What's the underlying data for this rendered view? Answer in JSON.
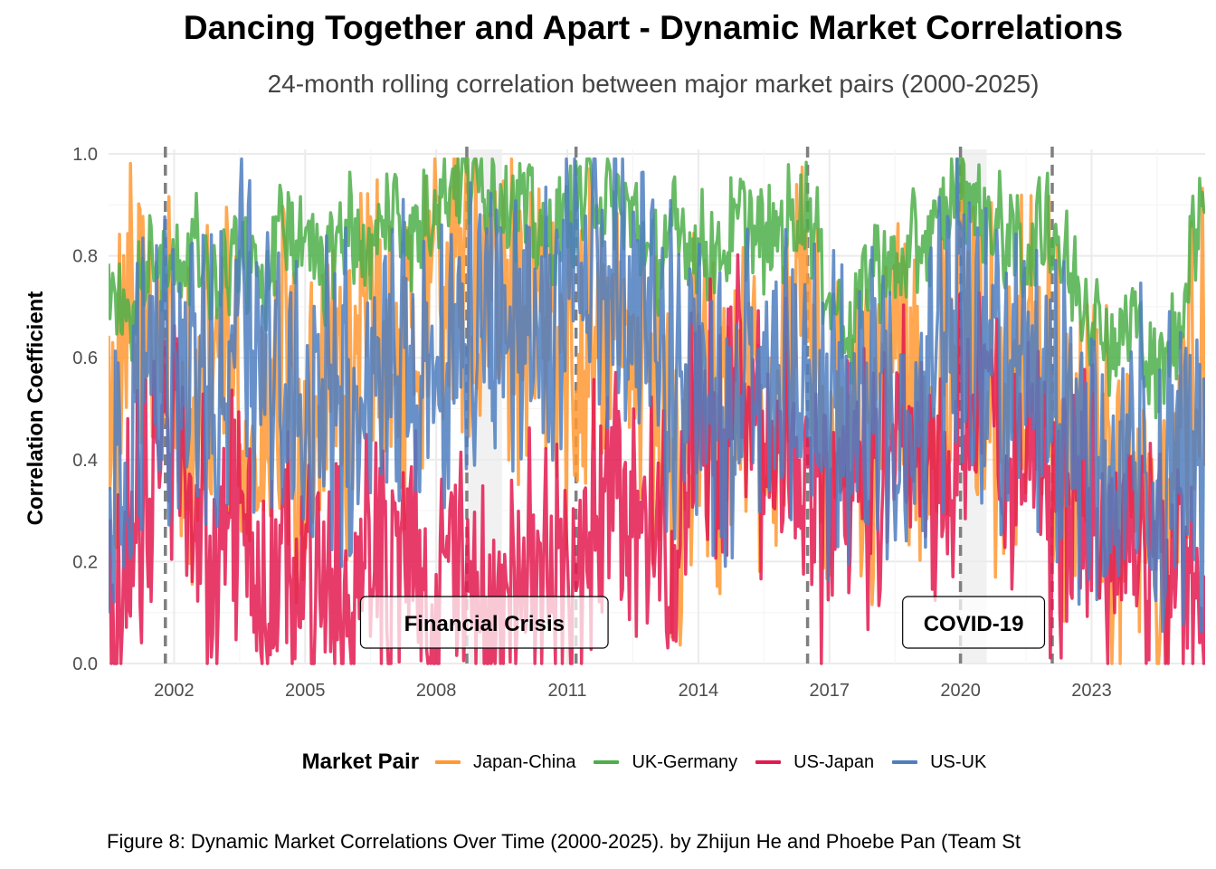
{
  "title": "Dancing Together and Apart - Dynamic Market Correlations",
  "subtitle": "24-month rolling correlation between major market pairs (2000-2025)",
  "caption": "Figure 8: Dynamic Market Correlations Over Time (2000-2025). by Zhijun He and Phoebe Pan (Team St",
  "chart_data": {
    "type": "line",
    "ylabel": "Correlation Coefficient",
    "xlabel": "",
    "xlim": [
      2000.5,
      2025.6
    ],
    "ylim": [
      0,
      1
    ],
    "x_ticks": [
      "2002",
      "2005",
      "2008",
      "2011",
      "2014",
      "2017",
      "2020",
      "2023"
    ],
    "y_ticks": [
      "0.0",
      "0.2",
      "0.4",
      "0.6",
      "0.8",
      "1.0"
    ],
    "grid": true,
    "legend": {
      "title": "Market Pair",
      "placement": "bottom"
    },
    "shaded_periods": [
      {
        "label": "Financial Crisis",
        "start": 2008.7,
        "end": 2009.5
      },
      {
        "label": "COVID-19",
        "start": 2020.0,
        "end": 2020.6
      }
    ],
    "event_lines": [
      2001.8,
      2008.7,
      2011.2,
      2016.5,
      2020.0,
      2022.1
    ],
    "x": [
      2000.5,
      2001.0,
      2001.5,
      2002.0,
      2002.5,
      2003.0,
      2003.5,
      2004.0,
      2004.5,
      2005.0,
      2005.5,
      2006.0,
      2006.5,
      2007.0,
      2007.5,
      2008.0,
      2008.5,
      2009.0,
      2009.5,
      2010.0,
      2010.5,
      2011.0,
      2011.5,
      2012.0,
      2012.5,
      2013.0,
      2013.5,
      2014.0,
      2014.5,
      2015.0,
      2015.5,
      2016.0,
      2016.5,
      2017.0,
      2017.5,
      2018.0,
      2018.5,
      2019.0,
      2019.5,
      2020.0,
      2020.5,
      2021.0,
      2021.5,
      2022.0,
      2022.5,
      2023.0,
      2023.5,
      2024.0,
      2024.5,
      2025.0,
      2025.5
    ],
    "series": [
      {
        "name": "Japan-China",
        "color": "#FF9933",
        "values": [
          0.45,
          0.62,
          0.7,
          0.55,
          0.4,
          0.62,
          0.5,
          0.35,
          0.58,
          0.3,
          0.65,
          0.48,
          0.72,
          0.55,
          0.6,
          0.78,
          0.75,
          0.7,
          0.68,
          0.72,
          0.65,
          0.55,
          0.68,
          0.6,
          0.72,
          0.48,
          0.35,
          0.55,
          0.42,
          0.6,
          0.38,
          0.65,
          0.78,
          0.3,
          0.55,
          0.42,
          0.62,
          0.48,
          0.52,
          0.7,
          0.58,
          0.45,
          0.62,
          0.55,
          0.38,
          0.48,
          0.3,
          0.4,
          0.22,
          0.45,
          0.63
        ]
      },
      {
        "name": "UK-Germany",
        "color": "#4DAF4A",
        "values": [
          0.73,
          0.68,
          0.8,
          0.76,
          0.82,
          0.72,
          0.85,
          0.7,
          0.88,
          0.82,
          0.78,
          0.86,
          0.8,
          0.9,
          0.83,
          0.92,
          0.96,
          0.95,
          0.92,
          0.9,
          0.82,
          0.88,
          0.93,
          0.9,
          0.88,
          0.78,
          0.85,
          0.82,
          0.8,
          0.88,
          0.82,
          0.86,
          0.9,
          0.72,
          0.65,
          0.8,
          0.76,
          0.82,
          0.85,
          0.96,
          0.88,
          0.84,
          0.8,
          0.88,
          0.76,
          0.7,
          0.62,
          0.68,
          0.55,
          0.66,
          0.92
        ]
      },
      {
        "name": "US-Japan",
        "color": "#E31A50",
        "values": [
          0.05,
          0.22,
          0.35,
          0.48,
          0.3,
          0.15,
          0.32,
          0.1,
          0.25,
          0.12,
          0.2,
          0.08,
          0.3,
          0.15,
          0.22,
          0.1,
          0.18,
          0.12,
          0.08,
          0.25,
          0.2,
          0.15,
          0.3,
          0.42,
          0.22,
          0.3,
          0.18,
          0.55,
          0.4,
          0.6,
          0.35,
          0.48,
          0.3,
          0.22,
          0.45,
          0.3,
          0.5,
          0.38,
          0.28,
          0.45,
          0.52,
          0.35,
          0.48,
          0.3,
          0.25,
          0.35,
          0.2,
          0.3,
          0.15,
          0.22,
          0.1
        ]
      },
      {
        "name": "US-UK",
        "color": "#4F7EBF",
        "values": [
          0.2,
          0.5,
          0.62,
          0.55,
          0.65,
          0.48,
          0.7,
          0.55,
          0.6,
          0.42,
          0.58,
          0.5,
          0.65,
          0.62,
          0.55,
          0.58,
          0.62,
          0.68,
          0.72,
          0.7,
          0.65,
          0.72,
          0.8,
          0.75,
          0.68,
          0.6,
          0.55,
          0.52,
          0.45,
          0.6,
          0.5,
          0.55,
          0.62,
          0.45,
          0.52,
          0.48,
          0.55,
          0.5,
          0.6,
          0.72,
          0.62,
          0.55,
          0.48,
          0.58,
          0.42,
          0.4,
          0.35,
          0.45,
          0.3,
          0.4,
          0.35
        ]
      }
    ]
  }
}
